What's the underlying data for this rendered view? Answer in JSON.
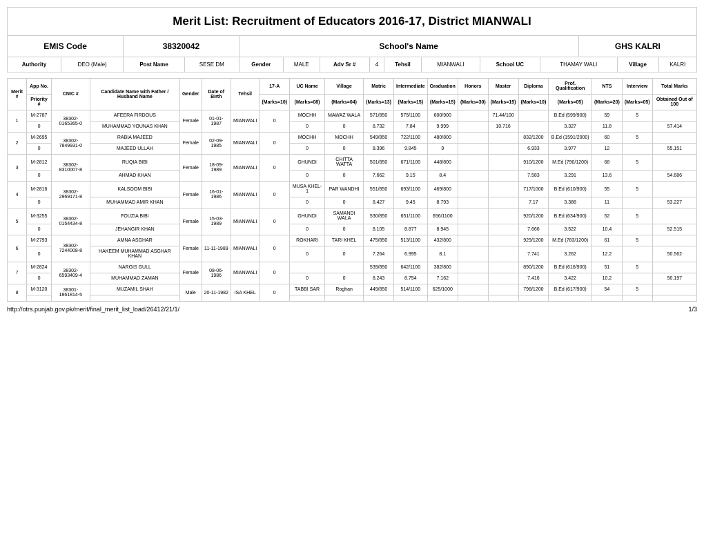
{
  "title": "Merit List: Recruitment of Educators 2016-17, District MIANWALI",
  "header": {
    "emis_code_label": "EMIS Code",
    "emis_code": "38320042",
    "school_name_label": "School's Name",
    "school_name": "GHS KALRI"
  },
  "meta": {
    "authority_label": "Authority",
    "authority": "DEO (Male)",
    "post_name_label": "Post Name",
    "post_name": "SESE DM",
    "gender_label": "Gender",
    "gender": "MALE",
    "adv_sr_label": "Adv Sr #",
    "adv_sr": "4",
    "tehsil_label": "Tehsil",
    "tehsil": "MIANWALI",
    "school_uc_label": "School UC",
    "school_uc": "THAMAY WALI",
    "village_label": "Village",
    "village": "KALRI"
  },
  "col_labels": {
    "merit_no": "Merit #",
    "app_no": "App No.",
    "priority": "Priority #",
    "cnic": "CNIC #",
    "candidate": "Candidate Name with Father / Husband Name",
    "gender": "Gender",
    "dob": "Date of Birth",
    "tehsil": "Tehsil",
    "a17": "17-A",
    "m10": "(Marks=10)",
    "uc": "UC Name",
    "m08": "(Marks=08)",
    "village": "Village",
    "m04": "(Marks=04)",
    "matric": "Matric",
    "m13": "(Marks=13)",
    "inter": "Intermediate",
    "m15": "(Marks=15)",
    "grad": "Graduation",
    "m15b": "(Marks=15)",
    "honors": "Honors",
    "m30": "(Marks=30)",
    "master": "Master",
    "m15c": "(Marks=15)",
    "diploma": "Diploma",
    "m10b": "(Marks=10)",
    "prof": "Prof. Qualification",
    "m05": "(Marks=05)",
    "nts": "NTS",
    "m20": "(Marks=20)",
    "interview": "Interview",
    "m05b": "(Marks=05)",
    "total": "Total Marks",
    "obtained": "Obtained Out of 100"
  },
  "rows": [
    {
      "merit": "1",
      "app": "M-2787",
      "priority": "0",
      "cnic": "38302-0165365-0",
      "cand": "AFEERA FIRDOUS",
      "father": "MUHAMMAD YOUNAS KHAN",
      "gender": "Female",
      "dob": "01-01-1987",
      "tehsil": "MIANWALI",
      "a17": "0",
      "uc": "MOCHH",
      "village": "MAWAZ WALA",
      "matric": "571/850",
      "inter": "575/1100",
      "grad": "600/900",
      "honors": "",
      "master": "71.44/100",
      "diploma": "",
      "prof": "B.Ed (599/900)",
      "nts": "59",
      "interview": "5",
      "total": "",
      "uc2": "0",
      "village2": "0",
      "matric2": "8.732",
      "inter2": "7.84",
      "grad2": "9.999",
      "honors2": "",
      "master2": "10.716",
      "diploma2": "",
      "prof2": "3.327",
      "nts2": "11.8",
      "interview2": "",
      "obtained": "57.414"
    },
    {
      "merit": "2",
      "app": "M-2695",
      "priority": "0",
      "cnic": "38302-7849931-0",
      "cand": "RABIA MAJEED",
      "father": "MAJEED ULLAH",
      "gender": "Female",
      "dob": "02-09-1985",
      "tehsil": "MIANWALI",
      "a17": "0",
      "uc": "MOCHH",
      "village": "MOCHH",
      "matric": "549/850",
      "inter": "722/1100",
      "grad": "480/800",
      "honors": "",
      "master": "",
      "diploma": "832/1200",
      "prof": "B.Ed (1591/2000)",
      "nts": "60",
      "interview": "5",
      "total": "",
      "uc2": "0",
      "village2": "0",
      "matric2": "8.396",
      "inter2": "9.845",
      "grad2": "9",
      "honors2": "",
      "master2": "",
      "diploma2": "6.933",
      "prof2": "3.977",
      "nts2": "12",
      "interview2": "",
      "obtained": "55.151"
    },
    {
      "merit": "3",
      "app": "M-2812",
      "priority": "0",
      "cnic": "38302-8310007-8",
      "cand": "RUQIA BIBI",
      "father": "AHMAD KHAN",
      "gender": "Female",
      "dob": "18-09-1989",
      "tehsil": "MIANWALI",
      "a17": "0",
      "uc": "GHUNDI",
      "village": "CHITTA WATTA",
      "matric": "501/850",
      "inter": "671/1100",
      "grad": "448/800",
      "honors": "",
      "master": "",
      "diploma": "910/1200",
      "prof": "M.Ed (790/1200)",
      "nts": "68",
      "interview": "5",
      "total": "",
      "uc2": "0",
      "village2": "0",
      "matric2": "7.662",
      "inter2": "9.15",
      "grad2": "8.4",
      "honors2": "",
      "master2": "",
      "diploma2": "7.583",
      "prof2": "3.291",
      "nts2": "13.6",
      "interview2": "",
      "obtained": "54.686"
    },
    {
      "merit": "4",
      "app": "M-2816",
      "priority": "0",
      "cnic": "38302-2969171-8",
      "cand": "KALSOOM BIBI",
      "father": "MUHAMMAD AMIR KHAN",
      "gender": "Female",
      "dob": "16-01-1986",
      "tehsil": "MIANWALI",
      "a17": "0",
      "uc": "MUSA KHEL-1",
      "village": "PAR WANDHI",
      "matric": "551/850",
      "inter": "693/1100",
      "grad": "469/800",
      "honors": "",
      "master": "",
      "diploma": "717/1000",
      "prof": "B.Ed (610/900)",
      "nts": "55",
      "interview": "5",
      "total": "",
      "uc2": "0",
      "village2": "0",
      "matric2": "8.427",
      "inter2": "9.45",
      "grad2": "8.793",
      "honors2": "",
      "master2": "",
      "diploma2": "7.17",
      "prof2": "3.388",
      "nts2": "11",
      "interview2": "",
      "obtained": "53.227"
    },
    {
      "merit": "5",
      "app": "M-3255",
      "priority": "0",
      "cnic": "38302-0154434-8",
      "cand": "FOUZIA BIBI",
      "father": "JEHANGIR KHAN",
      "gender": "Female",
      "dob": "15-03-1989",
      "tehsil": "MIANWALI",
      "a17": "0",
      "uc": "GHUNDI",
      "village": "SAMANDI WALA",
      "matric": "530/850",
      "inter": "651/1100",
      "grad": "656/1100",
      "honors": "",
      "master": "",
      "diploma": "920/1200",
      "prof": "B.Ed (634/900)",
      "nts": "52",
      "interview": "5",
      "total": "",
      "uc2": "0",
      "village2": "0",
      "matric2": "8.105",
      "inter2": "8.877",
      "grad2": "8.945",
      "honors2": "",
      "master2": "",
      "diploma2": "7.666",
      "prof2": "3.522",
      "nts2": "10.4",
      "interview2": "",
      "obtained": "52.515"
    },
    {
      "merit": "6",
      "app": "M-2793",
      "priority": "0",
      "cnic": "38302-7244008-8",
      "cand": "AMNA ASGHAR",
      "father": "HAKEEM MUHAMMAD ASGHAR KHAN",
      "gender": "Female",
      "dob": "11-11-1989",
      "tehsil": "MIANWALI",
      "a17": "0",
      "uc": "ROKHARI",
      "village": "TARI KHEL",
      "matric": "475/850",
      "inter": "513/1100",
      "grad": "432/800",
      "honors": "",
      "master": "",
      "diploma": "929/1200",
      "prof": "M.Ed (783/1200)",
      "nts": "61",
      "interview": "5",
      "total": "",
      "uc2": "0",
      "village2": "0",
      "matric2": "7.264",
      "inter2": "6.995",
      "grad2": "8.1",
      "honors2": "",
      "master2": "",
      "diploma2": "7.741",
      "prof2": "3.262",
      "nts2": "12.2",
      "interview2": "",
      "obtained": "50.562"
    },
    {
      "merit": "7",
      "app": "M-2824",
      "priority": "0",
      "cnic": "38302-6593409-4",
      "cand": "NARGIS GULL",
      "father": "MUHAMMAD ZAMAN",
      "gender": "Female",
      "dob": "08-06-1986",
      "tehsil": "MIANWALI",
      "a17": "0",
      "uc": "",
      "village": "",
      "matric": "539/850",
      "inter": "642/1100",
      "grad": "382/800",
      "honors": "",
      "master": "",
      "diploma": "890/1200",
      "prof": "B.Ed (616/900)",
      "nts": "51",
      "interview": "5",
      "total": "",
      "uc2": "0",
      "village2": "0",
      "matric2": "8.243",
      "inter2": "8.754",
      "grad2": "7.162",
      "honors2": "",
      "master2": "",
      "diploma2": "7.416",
      "prof2": "3.422",
      "nts2": "10.2",
      "interview2": "",
      "obtained": "50.197"
    },
    {
      "merit": "8",
      "app": "M-3120",
      "priority": "",
      "cnic": "38301-1861814-5",
      "cand": "MUZAMIL SHAH",
      "father": "",
      "gender": "Male",
      "dob": "20-11-1982",
      "tehsil": "ISA KHEL",
      "a17": "0",
      "uc": "TABBI SAR",
      "village": "Roghan",
      "matric": "449/850",
      "inter": "514/1100",
      "grad": "625/1000",
      "honors": "",
      "master": "",
      "diploma": "798/1200",
      "prof": "B.Ed (617/900)",
      "nts": "54",
      "interview": "5",
      "total": "",
      "uc2": "",
      "village2": "",
      "matric2": "",
      "inter2": "",
      "grad2": "",
      "honors2": "",
      "master2": "",
      "diploma2": "",
      "prof2": "",
      "nts2": "",
      "interview2": "",
      "obtained": ""
    }
  ],
  "footer": {
    "url": "http://otrs.punjab.gov.pk/merit/final_merit_list_load/26412/21/1/",
    "page": "1/3"
  }
}
